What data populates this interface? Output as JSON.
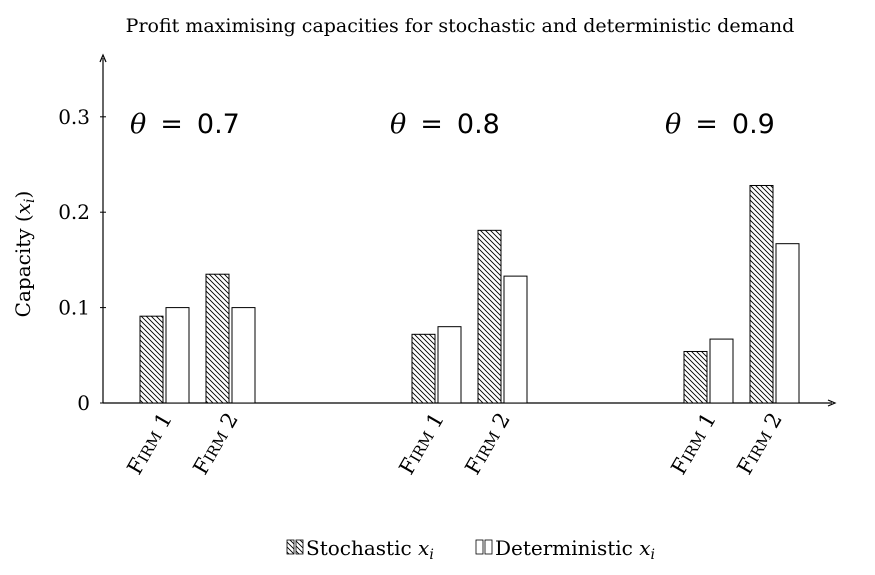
{
  "chart_data": {
    "type": "bar",
    "title": "Profit maximising capacities for stochastic and deterministic demand",
    "ylabel_text": "Capacity (",
    "ylabel_var": "x",
    "ylabel_sub": "i",
    "ylabel_close": ")",
    "ylim": [
      0,
      0.35
    ],
    "yticks": [
      {
        "value": 0,
        "label": "0"
      },
      {
        "value": 0.1,
        "label": "0.1"
      },
      {
        "value": 0.2,
        "label": "0.2"
      },
      {
        "value": 0.3,
        "label": "0.3"
      }
    ],
    "grid": false,
    "legend_position": "bottom-center",
    "groups": [
      {
        "theta_symbol": "θ",
        "theta_eq": "=",
        "theta_value": "0.7",
        "categories": [
          "Firm 1",
          "Firm 2"
        ],
        "stochastic": [
          0.091,
          0.135
        ],
        "deterministic": [
          0.1,
          0.1
        ]
      },
      {
        "theta_symbol": "θ",
        "theta_eq": "=",
        "theta_value": "0.8",
        "categories": [
          "Firm 1",
          "Firm 2"
        ],
        "stochastic": [
          0.072,
          0.181
        ],
        "deterministic": [
          0.08,
          0.133
        ]
      },
      {
        "theta_symbol": "θ",
        "theta_eq": "=",
        "theta_value": "0.9",
        "categories": [
          "Firm 1",
          "Firm 2"
        ],
        "stochastic": [
          0.054,
          0.228
        ],
        "deterministic": [
          0.067,
          0.167
        ]
      }
    ],
    "series": [
      {
        "name_text": "Stochastic ",
        "name_var": "x",
        "name_sub": "i",
        "fill": "hatch"
      },
      {
        "name_text": "Deterministic ",
        "name_var": "x",
        "name_sub": "i",
        "fill": "#ffffff"
      }
    ],
    "colors": {
      "bar_stroke": "#000000",
      "hatch": "#000000",
      "axis": "#000000"
    }
  }
}
